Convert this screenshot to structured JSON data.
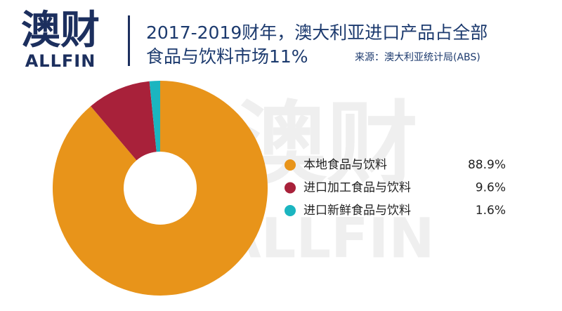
{
  "logo": {
    "name": "澳财",
    "brand": "ALLFIN"
  },
  "chart_data": {
    "type": "donut",
    "title": [
      "2017-2019财年，澳大利亚进口产品占全部",
      "食品与饮料市场11%"
    ],
    "source": "来源：澳大利亚统计局(ABS)",
    "categories": [
      "本地食品与饮料",
      "进口加工食品与饮料",
      "进口新鲜食品与饮料"
    ],
    "values": [
      88.9,
      9.6,
      1.6
    ],
    "value_labels": [
      "88.9%",
      "9.6%",
      "1.6%"
    ],
    "colors": [
      "#e8941a",
      "#a8213a",
      "#1bb5c0"
    ]
  }
}
